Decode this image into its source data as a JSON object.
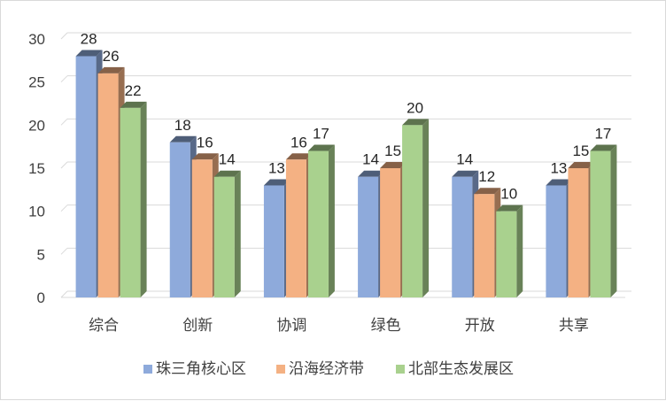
{
  "chart_data": {
    "type": "bar",
    "categories": [
      "综合",
      "创新",
      "协调",
      "绿色",
      "开放",
      "共享"
    ],
    "series": [
      {
        "name": "珠三角核心区",
        "values": [
          28,
          18,
          13,
          14,
          14,
          13
        ],
        "color": "#8eaadb"
      },
      {
        "name": "沿海经济带",
        "values": [
          26,
          16,
          16,
          15,
          12,
          15
        ],
        "color": "#f4b183"
      },
      {
        "name": "北部生态发展区",
        "values": [
          22,
          14,
          17,
          20,
          10,
          17
        ],
        "color": "#a9d18e"
      }
    ],
    "ylim": [
      0,
      30
    ],
    "yticks": [
      0,
      5,
      10,
      15,
      20,
      25,
      30
    ],
    "grid": true,
    "legend": "bottom",
    "style": "3d-clustered-column",
    "colors": {
      "grid": "#d9d9d9",
      "text": "#404040"
    }
  }
}
